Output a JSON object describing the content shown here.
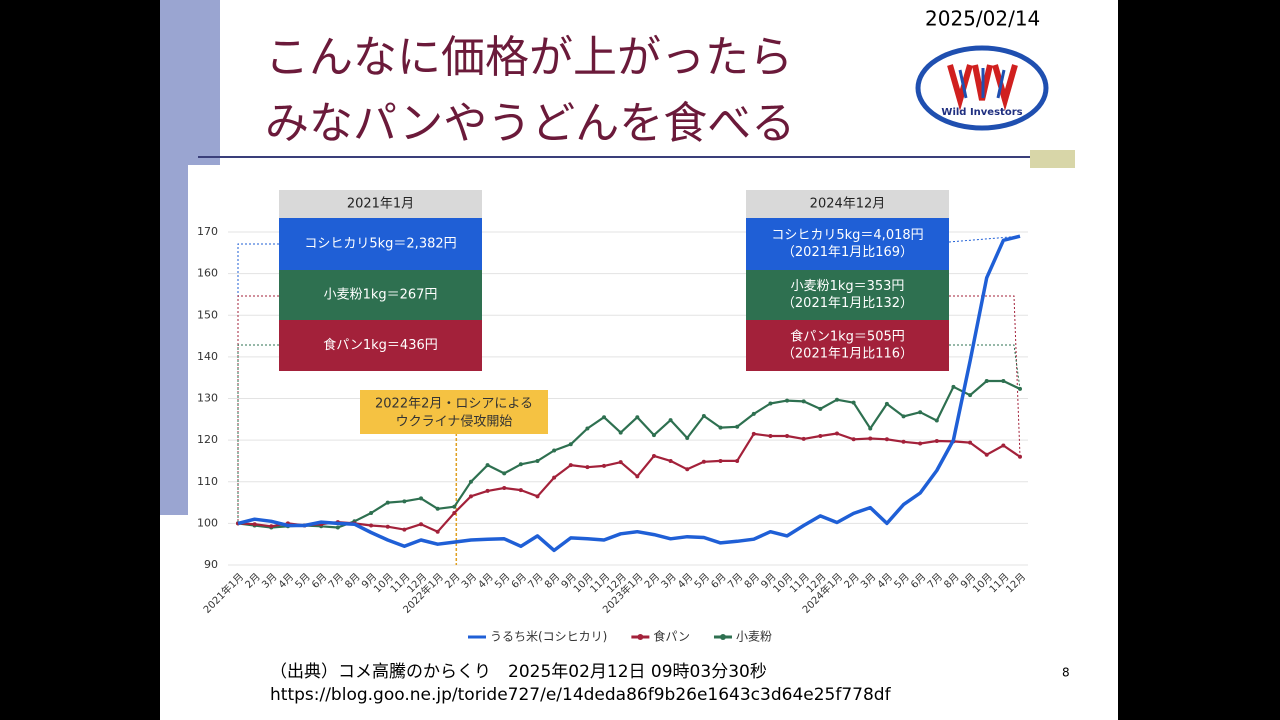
{
  "slide": {
    "title_lines": [
      "こんなに価格が上がったら",
      "みなパンやうどんを食べる"
    ],
    "date": "2025/02/14",
    "logo_text": "Wild Investors",
    "source": "（出典）コメ高騰のからくり　2025年02月12日 09時03分30秒",
    "url": "https://blog.goo.ne.jp/toride727/e/14deda86f9b26e1643c3d64e25f778df",
    "page": "8"
  },
  "chart_data": {
    "type": "line",
    "categories": [
      "2021年1月",
      "2月",
      "3月",
      "4月",
      "5月",
      "6月",
      "7月",
      "8月",
      "9月",
      "10月",
      "11月",
      "12月",
      "2022年1月",
      "2月",
      "3月",
      "4月",
      "5月",
      "6月",
      "7月",
      "8月",
      "9月",
      "10月",
      "11月",
      "12月",
      "2023年1月",
      "2月",
      "3月",
      "4月",
      "5月",
      "6月",
      "7月",
      "8月",
      "9月",
      "10月",
      "11月",
      "12月",
      "2024年1月",
      "2月",
      "3月",
      "4月",
      "5月",
      "6月",
      "7月",
      "8月",
      "9月",
      "10月",
      "11月",
      "12月"
    ],
    "series": [
      {
        "name": "うるち米(コシヒカリ)",
        "color": "#1f5fd6",
        "markers": false,
        "values": [
          100,
          101,
          100.5,
          99.5,
          99.5,
          100.3,
          100,
          99.8,
          97.8,
          96,
          94.5,
          96,
          95,
          95.5,
          96,
          96.2,
          96.3,
          94.5,
          97,
          93.5,
          96.5,
          96.3,
          96,
          97.5,
          98,
          97.3,
          96.3,
          96.8,
          96.6,
          95.3,
          95.7,
          96.2,
          98,
          97,
          99.5,
          101.8,
          100.2,
          102.4,
          103.8,
          100,
          104.5,
          107.3,
          112.7,
          120,
          139,
          159,
          168,
          169
        ]
      },
      {
        "name": "食パン",
        "color": "#a3213a",
        "markers": true,
        "values": [
          100,
          99.8,
          99.3,
          100,
          99.5,
          99.8,
          100.3,
          100,
          99.5,
          99.2,
          98.5,
          99.8,
          98,
          102.5,
          106.5,
          107.8,
          108.5,
          108,
          106.5,
          111,
          114,
          113.5,
          113.8,
          114.7,
          111.3,
          116.2,
          115,
          113,
          114.8,
          115,
          115,
          121.5,
          121,
          121,
          120.3,
          121,
          121.6,
          120.2,
          120.4,
          120.2,
          119.6,
          119.2,
          119.8,
          119.7,
          119.4,
          116.5,
          118.7,
          116
        ]
      },
      {
        "name": "小麦粉",
        "color": "#2e7050",
        "markers": true,
        "values": [
          100,
          99.5,
          99,
          99.3,
          99.5,
          99.3,
          99,
          100.5,
          102.5,
          105,
          105.3,
          106,
          103.5,
          104,
          110,
          114,
          112,
          114.2,
          115,
          117.5,
          119,
          122.8,
          125.5,
          121.8,
          125.5,
          121.2,
          124.8,
          120.5,
          125.8,
          123,
          123.2,
          126.3,
          128.8,
          129.5,
          129.3,
          127.5,
          129.7,
          129,
          122.8,
          128.7,
          125.7,
          126.7,
          124.7,
          132.8,
          130.8,
          134.2,
          134.2,
          132.3
        ]
      }
    ],
    "ylim": [
      90,
      170
    ],
    "yticks": [
      90,
      100,
      110,
      120,
      130,
      140,
      150,
      160,
      170
    ],
    "grid": true,
    "legend": "bottom",
    "boxes": [
      {
        "header": "2021年1月",
        "entries": [
          {
            "lines": [
              "コシヒカリ5kg＝2,382円"
            ],
            "color": "#1f5fd6"
          },
          {
            "lines": [
              "小麦粉1kg＝267円"
            ],
            "color": "#2e7050"
          },
          {
            "lines": [
              "食パン1kg＝436円"
            ],
            "color": "#a3213a"
          }
        ]
      },
      {
        "header": "2024年12月",
        "entries": [
          {
            "lines": [
              "コシヒカリ5kg＝4,018円",
              "（2021年1月比169）"
            ],
            "color": "#1f5fd6"
          },
          {
            "lines": [
              "小麦粉1kg＝353円",
              "（2021年1月比132）"
            ],
            "color": "#2e7050"
          },
          {
            "lines": [
              "食パン1kg＝505円",
              "（2021年1月比116）"
            ],
            "color": "#a3213a"
          }
        ]
      }
    ],
    "callout": {
      "lines": [
        "2022年2月・ロシアによる",
        "ウクライナ侵攻開始"
      ],
      "color": "#f5c242"
    }
  }
}
